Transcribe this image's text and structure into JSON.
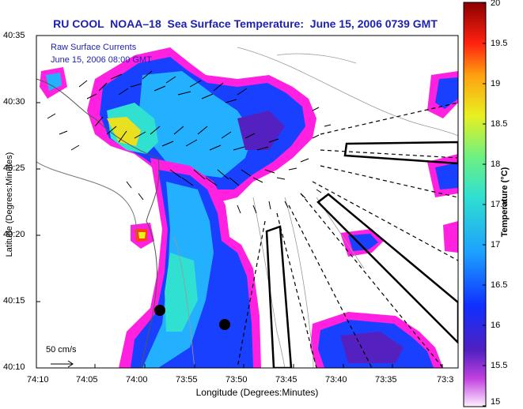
{
  "title": "RU COOL  NOAA–18  Sea Surface Temperature:  June 15, 2006 0739 GMT",
  "legend": {
    "line1": "Raw Surface Currents",
    "line2": "June 15, 2006 08:00 GMT"
  },
  "axes": {
    "ylabel": "Latitude (Degrees:Minutes)",
    "xlabel": "Longitude (Degrees:Minutes)",
    "yticks": [
      "40:35",
      "40:30",
      "40:25",
      "40:20",
      "40:15",
      "40:10"
    ],
    "xticks": [
      "74:10",
      "74:05",
      "74:00",
      "73:55",
      "73:50",
      "73:45",
      "73:40",
      "73:35",
      "73:3"
    ]
  },
  "colorbar": {
    "title": "Temperature (°C)",
    "ticks": [
      "20",
      "19.5",
      "19",
      "18.5",
      "18",
      "17.5",
      "17",
      "16.5",
      "16",
      "15.5",
      "15"
    ]
  },
  "scale": {
    "label": "50 cm/s"
  },
  "colors": {
    "title": "#1c1fb5",
    "land": "#ffffff",
    "mask": "#ff20e0"
  }
}
